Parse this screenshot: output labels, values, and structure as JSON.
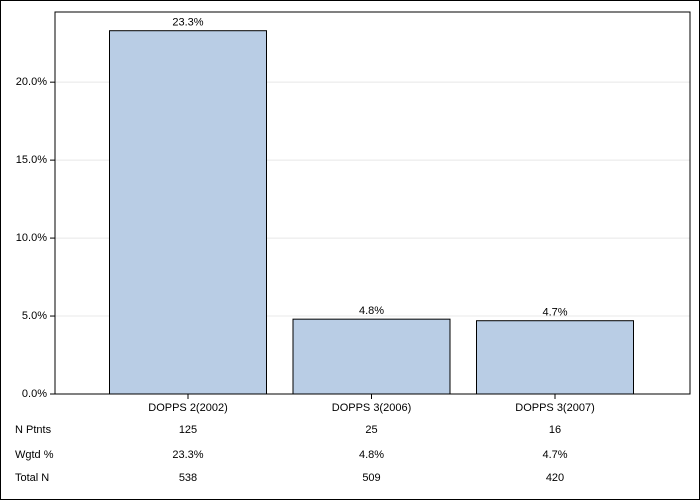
{
  "chart_data": {
    "type": "bar",
    "categories": [
      "DOPPS 2(2002)",
      "DOPPS 3(2006)",
      "DOPPS 3(2007)"
    ],
    "values": [
      23.3,
      4.8,
      4.7
    ],
    "value_labels": [
      "23.3%",
      "4.8%",
      "4.7%"
    ],
    "color": "#b9cde5",
    "ylim": [
      0,
      24.5
    ],
    "yticks": [
      {
        "value": 0,
        "label": "0.0%"
      },
      {
        "value": 5,
        "label": "5.0%"
      },
      {
        "value": 10,
        "label": "10.0%"
      },
      {
        "value": 15,
        "label": "15.0%"
      },
      {
        "value": 20,
        "label": "20.0%"
      }
    ],
    "grid": true,
    "table": {
      "rows": [
        {
          "label": "N Ptnts",
          "values": [
            125,
            25,
            16
          ]
        },
        {
          "label": "Wgtd %",
          "values": [
            "23.3%",
            "4.8%",
            "4.7%"
          ]
        },
        {
          "label": "Total N",
          "values": [
            538,
            509,
            420
          ]
        }
      ]
    }
  }
}
